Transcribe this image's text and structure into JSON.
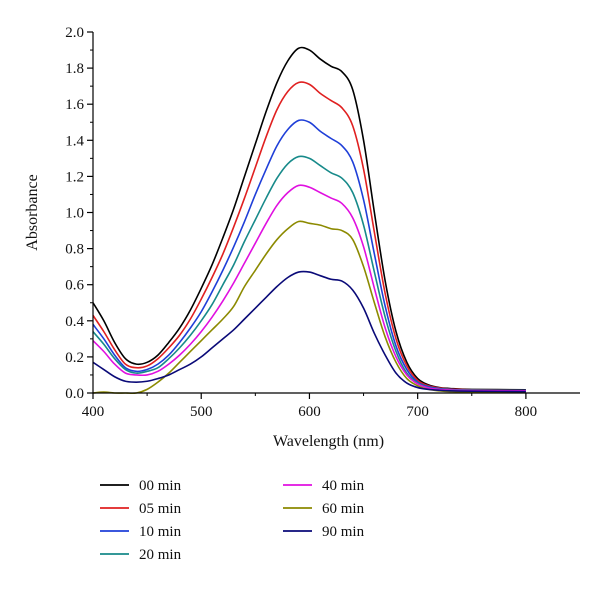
{
  "chart_data": {
    "type": "line",
    "xlabel": "Wavelength (nm)",
    "ylabel": "Absorbance",
    "xlim": [
      400,
      850
    ],
    "ylim": [
      0,
      2.0
    ],
    "grid": false,
    "legend_position": "bottom",
    "x_ticks": [
      {
        "value": 400,
        "label": "400"
      },
      {
        "value": 500,
        "label": "500"
      },
      {
        "value": 600,
        "label": "600"
      },
      {
        "value": 700,
        "label": "700"
      },
      {
        "value": 800,
        "label": "800"
      }
    ],
    "y_ticks": [
      {
        "value": 0.0,
        "label": "0.0"
      },
      {
        "value": 0.2,
        "label": "0.2"
      },
      {
        "value": 0.4,
        "label": "0.4"
      },
      {
        "value": 0.6,
        "label": "0.6"
      },
      {
        "value": 0.8,
        "label": "0.8"
      },
      {
        "value": 1.0,
        "label": "1.0"
      },
      {
        "value": 1.2,
        "label": "1.2"
      },
      {
        "value": 1.4,
        "label": "1.4"
      },
      {
        "value": 1.6,
        "label": "1.6"
      },
      {
        "value": 1.8,
        "label": "1.8"
      },
      {
        "value": 2.0,
        "label": "2.0"
      }
    ],
    "series": [
      {
        "name": "00 min",
        "color": "#000000",
        "points": [
          [
            400,
            0.5
          ],
          [
            410,
            0.4
          ],
          [
            420,
            0.28
          ],
          [
            430,
            0.19
          ],
          [
            440,
            0.16
          ],
          [
            450,
            0.17
          ],
          [
            460,
            0.21
          ],
          [
            470,
            0.28
          ],
          [
            480,
            0.36
          ],
          [
            490,
            0.46
          ],
          [
            500,
            0.58
          ],
          [
            510,
            0.71
          ],
          [
            520,
            0.86
          ],
          [
            530,
            1.02
          ],
          [
            540,
            1.2
          ],
          [
            550,
            1.38
          ],
          [
            560,
            1.56
          ],
          [
            570,
            1.72
          ],
          [
            580,
            1.84
          ],
          [
            590,
            1.91
          ],
          [
            600,
            1.9
          ],
          [
            610,
            1.85
          ],
          [
            620,
            1.81
          ],
          [
            630,
            1.78
          ],
          [
            640,
            1.68
          ],
          [
            650,
            1.4
          ],
          [
            660,
            1.0
          ],
          [
            670,
            0.62
          ],
          [
            680,
            0.34
          ],
          [
            690,
            0.17
          ],
          [
            700,
            0.08
          ],
          [
            710,
            0.045
          ],
          [
            720,
            0.03
          ],
          [
            730,
            0.025
          ],
          [
            750,
            0.02
          ],
          [
            800,
            0.018
          ]
        ]
      },
      {
        "name": "05 min",
        "color": "#e02020",
        "points": [
          [
            400,
            0.43
          ],
          [
            410,
            0.34
          ],
          [
            420,
            0.24
          ],
          [
            430,
            0.16
          ],
          [
            440,
            0.14
          ],
          [
            450,
            0.15
          ],
          [
            460,
            0.19
          ],
          [
            470,
            0.25
          ],
          [
            480,
            0.32
          ],
          [
            490,
            0.41
          ],
          [
            500,
            0.52
          ],
          [
            510,
            0.64
          ],
          [
            520,
            0.77
          ],
          [
            530,
            0.92
          ],
          [
            540,
            1.08
          ],
          [
            550,
            1.25
          ],
          [
            560,
            1.42
          ],
          [
            570,
            1.57
          ],
          [
            580,
            1.67
          ],
          [
            590,
            1.72
          ],
          [
            600,
            1.71
          ],
          [
            610,
            1.66
          ],
          [
            620,
            1.62
          ],
          [
            630,
            1.58
          ],
          [
            640,
            1.48
          ],
          [
            650,
            1.24
          ],
          [
            660,
            0.89
          ],
          [
            670,
            0.55
          ],
          [
            680,
            0.3
          ],
          [
            690,
            0.15
          ],
          [
            700,
            0.07
          ],
          [
            710,
            0.04
          ],
          [
            720,
            0.028
          ],
          [
            730,
            0.022
          ],
          [
            750,
            0.018
          ],
          [
            800,
            0.015
          ]
        ]
      },
      {
        "name": "10 min",
        "color": "#1f3fd8",
        "points": [
          [
            400,
            0.38
          ],
          [
            410,
            0.3
          ],
          [
            420,
            0.21
          ],
          [
            430,
            0.14
          ],
          [
            440,
            0.12
          ],
          [
            450,
            0.13
          ],
          [
            460,
            0.16
          ],
          [
            470,
            0.21
          ],
          [
            480,
            0.28
          ],
          [
            490,
            0.36
          ],
          [
            500,
            0.45
          ],
          [
            510,
            0.56
          ],
          [
            520,
            0.68
          ],
          [
            530,
            0.81
          ],
          [
            540,
            0.95
          ],
          [
            550,
            1.1
          ],
          [
            560,
            1.24
          ],
          [
            570,
            1.37
          ],
          [
            580,
            1.46
          ],
          [
            590,
            1.51
          ],
          [
            600,
            1.5
          ],
          [
            610,
            1.45
          ],
          [
            620,
            1.41
          ],
          [
            630,
            1.37
          ],
          [
            640,
            1.28
          ],
          [
            650,
            1.07
          ],
          [
            660,
            0.77
          ],
          [
            670,
            0.48
          ],
          [
            680,
            0.26
          ],
          [
            690,
            0.13
          ],
          [
            700,
            0.06
          ],
          [
            710,
            0.035
          ],
          [
            720,
            0.025
          ],
          [
            730,
            0.02
          ],
          [
            750,
            0.016
          ],
          [
            800,
            0.014
          ]
        ]
      },
      {
        "name": "20 min",
        "color": "#178a8a",
        "points": [
          [
            400,
            0.34
          ],
          [
            410,
            0.27
          ],
          [
            420,
            0.19
          ],
          [
            430,
            0.13
          ],
          [
            440,
            0.11
          ],
          [
            450,
            0.12
          ],
          [
            460,
            0.14
          ],
          [
            470,
            0.19
          ],
          [
            480,
            0.25
          ],
          [
            490,
            0.32
          ],
          [
            500,
            0.4
          ],
          [
            510,
            0.49
          ],
          [
            520,
            0.6
          ],
          [
            530,
            0.71
          ],
          [
            540,
            0.84
          ],
          [
            550,
            0.96
          ],
          [
            560,
            1.08
          ],
          [
            570,
            1.19
          ],
          [
            580,
            1.27
          ],
          [
            590,
            1.31
          ],
          [
            600,
            1.3
          ],
          [
            610,
            1.26
          ],
          [
            620,
            1.22
          ],
          [
            630,
            1.19
          ],
          [
            640,
            1.11
          ],
          [
            650,
            0.93
          ],
          [
            660,
            0.67
          ],
          [
            670,
            0.42
          ],
          [
            680,
            0.23
          ],
          [
            690,
            0.11
          ],
          [
            700,
            0.055
          ],
          [
            710,
            0.03
          ],
          [
            720,
            0.022
          ],
          [
            730,
            0.018
          ],
          [
            750,
            0.015
          ],
          [
            800,
            0.013
          ]
        ]
      },
      {
        "name": "40 min",
        "color": "#e010e0",
        "points": [
          [
            400,
            0.29
          ],
          [
            410,
            0.23
          ],
          [
            420,
            0.16
          ],
          [
            430,
            0.11
          ],
          [
            440,
            0.1
          ],
          [
            450,
            0.1
          ],
          [
            460,
            0.12
          ],
          [
            470,
            0.16
          ],
          [
            480,
            0.21
          ],
          [
            490,
            0.27
          ],
          [
            500,
            0.34
          ],
          [
            510,
            0.42
          ],
          [
            520,
            0.51
          ],
          [
            530,
            0.61
          ],
          [
            540,
            0.72
          ],
          [
            550,
            0.83
          ],
          [
            560,
            0.94
          ],
          [
            570,
            1.04
          ],
          [
            580,
            1.11
          ],
          [
            590,
            1.15
          ],
          [
            600,
            1.14
          ],
          [
            610,
            1.11
          ],
          [
            620,
            1.08
          ],
          [
            630,
            1.05
          ],
          [
            640,
            0.97
          ],
          [
            650,
            0.81
          ],
          [
            660,
            0.58
          ],
          [
            670,
            0.36
          ],
          [
            680,
            0.2
          ],
          [
            690,
            0.1
          ],
          [
            700,
            0.05
          ],
          [
            710,
            0.028
          ],
          [
            720,
            0.02
          ],
          [
            730,
            0.016
          ],
          [
            750,
            0.013
          ],
          [
            800,
            0.012
          ]
        ]
      },
      {
        "name": "60 min",
        "color": "#8c8a00",
        "points": [
          [
            400,
            0.0
          ],
          [
            410,
            0.005
          ],
          [
            420,
            0.0
          ],
          [
            430,
            0.0
          ],
          [
            440,
            0.0
          ],
          [
            450,
            0.02
          ],
          [
            460,
            0.06
          ],
          [
            470,
            0.11
          ],
          [
            480,
            0.17
          ],
          [
            490,
            0.23
          ],
          [
            500,
            0.29
          ],
          [
            510,
            0.35
          ],
          [
            520,
            0.41
          ],
          [
            530,
            0.48
          ],
          [
            540,
            0.59
          ],
          [
            550,
            0.68
          ],
          [
            560,
            0.77
          ],
          [
            570,
            0.85
          ],
          [
            580,
            0.91
          ],
          [
            590,
            0.95
          ],
          [
            600,
            0.94
          ],
          [
            610,
            0.93
          ],
          [
            620,
            0.91
          ],
          [
            630,
            0.9
          ],
          [
            640,
            0.85
          ],
          [
            650,
            0.7
          ],
          [
            660,
            0.5
          ],
          [
            670,
            0.31
          ],
          [
            680,
            0.17
          ],
          [
            690,
            0.08
          ],
          [
            700,
            0.04
          ],
          [
            710,
            0.02
          ],
          [
            720,
            0.012
          ],
          [
            730,
            0.008
          ],
          [
            750,
            0.005
          ],
          [
            800,
            0.003
          ]
        ]
      },
      {
        "name": "90 min",
        "color": "#0a0a78",
        "points": [
          [
            400,
            0.17
          ],
          [
            410,
            0.13
          ],
          [
            420,
            0.09
          ],
          [
            430,
            0.065
          ],
          [
            440,
            0.06
          ],
          [
            450,
            0.065
          ],
          [
            460,
            0.08
          ],
          [
            470,
            0.1
          ],
          [
            480,
            0.13
          ],
          [
            490,
            0.16
          ],
          [
            500,
            0.2
          ],
          [
            510,
            0.25
          ],
          [
            520,
            0.3
          ],
          [
            530,
            0.35
          ],
          [
            540,
            0.41
          ],
          [
            550,
            0.47
          ],
          [
            560,
            0.53
          ],
          [
            570,
            0.59
          ],
          [
            580,
            0.64
          ],
          [
            590,
            0.67
          ],
          [
            600,
            0.67
          ],
          [
            610,
            0.65
          ],
          [
            620,
            0.63
          ],
          [
            630,
            0.62
          ],
          [
            640,
            0.57
          ],
          [
            650,
            0.47
          ],
          [
            660,
            0.33
          ],
          [
            670,
            0.21
          ],
          [
            680,
            0.11
          ],
          [
            690,
            0.055
          ],
          [
            700,
            0.03
          ],
          [
            710,
            0.02
          ],
          [
            720,
            0.015
          ],
          [
            730,
            0.012
          ],
          [
            750,
            0.01
          ],
          [
            800,
            0.008
          ]
        ]
      }
    ]
  }
}
